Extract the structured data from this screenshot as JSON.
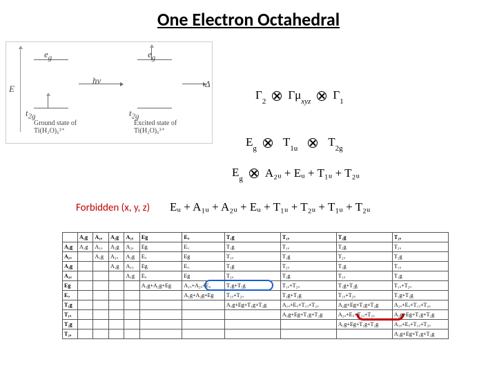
{
  "title": "One Electron Octahedral",
  "diagram": {
    "y_label": "E",
    "eg_label": "e",
    "eg_sub": "g",
    "t2g_label": "t",
    "t2g_sub": "2g",
    "hv_label": "hν",
    "delta_label": "Δ",
    "ground_caption_l1": "Ground state of",
    "ground_caption_l2": "Ti(H₂O)₆³⁺",
    "excited_caption_l1": "Excited state of",
    "excited_caption_l2": "Ti(H₂O)₆³⁺"
  },
  "eq1": {
    "t1": "Γ",
    "s1": "2",
    "t2": "Γμ",
    "s2": "xyz",
    "t3": "Γ",
    "s3": "1"
  },
  "eq2": {
    "t1": "E",
    "s1": "g",
    "t2": "T",
    "s2": "1u",
    "t3": "T",
    "s3": "2g"
  },
  "eq3": {
    "lhs_t": "E",
    "lhs_s": "g",
    "rhs": "A₂ᵤ + Eᵤ + T₁ᵤ + T₂ᵤ"
  },
  "eq4": {
    "label": "Forbidden (x, y, z)",
    "rhs": "Eᵤ + A₁ᵤ + A₂ᵤ + Eᵤ + T₁ᵤ + T₂ᵤ + T₁ᵤ + T₂ᵤ"
  },
  "table": {
    "headers": [
      "",
      "A₁g",
      "A₁ᵤ",
      "A₂g",
      "A₂ᵤ",
      "Eg",
      "Eᵤ",
      "T₁g",
      "T₁ᵤ",
      "T₂g",
      "T₂ᵤ"
    ],
    "rows": [
      [
        "A₁g",
        "A₁g",
        "A₁ᵤ",
        "A₂g",
        "A₂ᵤ",
        "Eg",
        "Eᵤ",
        "T₁g",
        "T₁ᵤ",
        "T₂g",
        "T₂ᵤ"
      ],
      [
        "A₁ᵤ",
        "",
        "A₁g",
        "A₂ᵤ",
        "A₂g",
        "Eᵤ",
        "Eg",
        "T₁ᵤ",
        "T₁g",
        "T₂ᵤ",
        "T₂g"
      ],
      [
        "A₂g",
        "",
        "",
        "A₁g",
        "A₁ᵤ",
        "Eg",
        "Eᵤ",
        "T₂g",
        "T₂ᵤ",
        "T₁g",
        "T₁ᵤ"
      ],
      [
        "A₂ᵤ",
        "",
        "",
        "",
        "A₁g",
        "Eᵤ",
        "Eg",
        "T₂ᵤ",
        "T₂g",
        "T₁ᵤ",
        "T₁g"
      ],
      [
        "Eg",
        "",
        "",
        "",
        "",
        "A₁g+A₂g+Eg",
        "A₁ᵤ+A₂ᵤ+Eᵤ",
        "T₁g+T₂g",
        "T₁ᵤ+T₂ᵤ",
        "T₁g+T₂g",
        "T₁ᵤ+T₂ᵤ"
      ],
      [
        "Eᵤ",
        "",
        "",
        "",
        "",
        "",
        "A₁g+A₂g+Eg",
        "T₁ᵤ+T₂ᵤ",
        "T₁g+T₂g",
        "T₁ᵤ+T₂ᵤ",
        "T₁g+T₂g"
      ],
      [
        "T₁g",
        "",
        "",
        "",
        "",
        "",
        "",
        "A₁g+Eg+T₁g+T₂g",
        "A₁ᵤ+Eᵤ+T₁ᵤ+T₂ᵤ",
        "A₂g+Eg+T₁g+T₂g",
        "A₂ᵤ+Eᵤ+T₁ᵤ+T₂ᵤ"
      ],
      [
        "T₁ᵤ",
        "",
        "",
        "",
        "",
        "",
        "",
        "",
        "A₁g+Eg+T₁g+T₂g",
        "A₂ᵤ+Eᵤ+T₁ᵤ+T₂ᵤ",
        "A₂g+Eg+T₁g+T₂g"
      ],
      [
        "T₂g",
        "",
        "",
        "",
        "",
        "",
        "",
        "",
        "",
        "A₁g+Eg+T₁g+T₂g",
        "A₁ᵤ+Eᵤ+T₁ᵤ+T₂ᵤ"
      ],
      [
        "T₂ᵤ",
        "",
        "",
        "",
        "",
        "",
        "",
        "",
        "",
        "",
        "A₁g+Eg+T₁g+T₂g"
      ]
    ]
  }
}
